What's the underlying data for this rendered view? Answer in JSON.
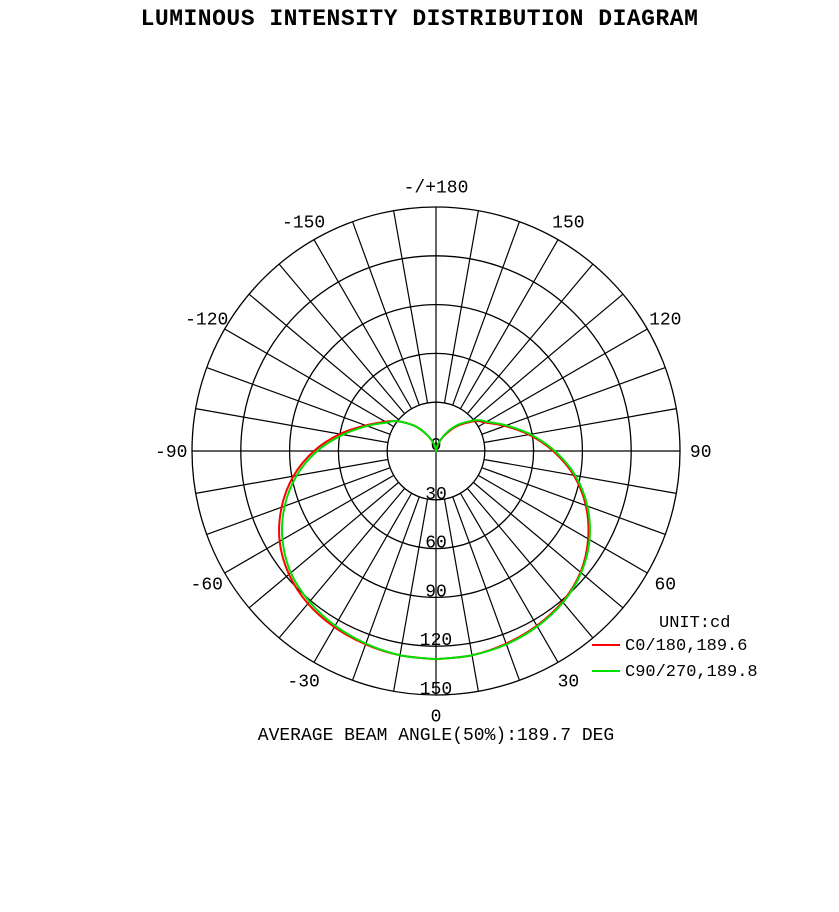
{
  "chart_data": {
    "type": "polar",
    "title": "LUMINOUS INTENSITY DISTRIBUTION DIAGRAM",
    "radial_range": [
      0,
      150
    ],
    "radial_ticks": [
      0,
      30,
      60,
      90,
      120,
      150
    ],
    "angle_labels": [
      "-/+180",
      "150",
      "120",
      "90",
      "60",
      "30",
      "0",
      "-30",
      "-60",
      "-90",
      "-120",
      "-150"
    ],
    "angle_label_values": [
      180,
      150,
      120,
      90,
      60,
      30,
      0,
      -30,
      -60,
      -90,
      -120,
      -150
    ],
    "spoke_step_deg": 10,
    "unit_label": "UNIT:cd",
    "footer": "AVERAGE BEAM ANGLE(50%):189.7 DEG",
    "angles": [
      0,
      10,
      20,
      30,
      40,
      50,
      60,
      70,
      80,
      90,
      100,
      110,
      120,
      125,
      130,
      140,
      150,
      160,
      170,
      180
    ],
    "series": [
      {
        "name": "C0/180,189.6",
        "color": "#ff0000",
        "right": [
          128,
          127.5,
          126,
          124,
          121,
          116,
          108,
          98,
          86,
          72,
          58,
          45,
          35,
          32,
          28,
          20,
          12,
          6,
          2,
          0
        ],
        "left": [
          128,
          127.5,
          126.5,
          125,
          122.5,
          118,
          111,
          101,
          89,
          75,
          60,
          46,
          36,
          32,
          28,
          20,
          12,
          6,
          2,
          0
        ]
      },
      {
        "name": "C90/270,189.8",
        "color": "#00e000",
        "right": [
          128,
          127.5,
          126.5,
          124.5,
          121.5,
          116.5,
          109,
          99,
          87,
          73,
          59,
          46,
          36,
          33,
          29,
          21,
          13,
          6,
          2,
          0
        ],
        "left": [
          128,
          127.5,
          126,
          124,
          121,
          116.5,
          109,
          99,
          87,
          73,
          58,
          45,
          35,
          32,
          28,
          20,
          12,
          6,
          2,
          0
        ]
      }
    ]
  }
}
